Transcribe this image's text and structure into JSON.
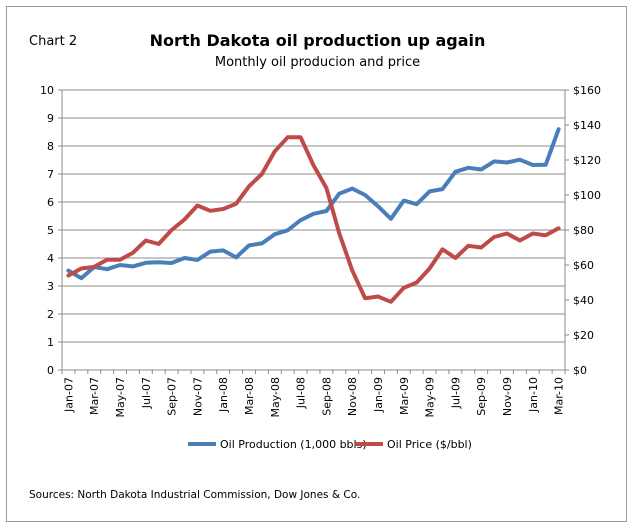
{
  "header": {
    "chart_label": "Chart 2",
    "title": "North Dakota oil production up again",
    "subtitle": "Monthly oil producion and price"
  },
  "source": "Sources: North Dakota Industrial Commission, Dow Jones & Co.",
  "colors": {
    "production": "#4a7ebb",
    "price": "#be4b48",
    "grid": "#8c8c8c"
  },
  "chart_data": {
    "type": "line",
    "x": [
      "Jan-07",
      "Feb-07",
      "Mar-07",
      "Apr-07",
      "May-07",
      "Jun-07",
      "Jul-07",
      "Aug-07",
      "Sep-07",
      "Oct-07",
      "Nov-07",
      "Dec-07",
      "Jan-08",
      "Feb-08",
      "Mar-08",
      "Apr-08",
      "May-08",
      "Jun-08",
      "Jul-08",
      "Aug-08",
      "Sep-08",
      "Oct-08",
      "Nov-08",
      "Dec-08",
      "Jan-09",
      "Feb-09",
      "Mar-09",
      "Apr-09",
      "May-09",
      "Jun-09",
      "Jul-09",
      "Aug-09",
      "Sep-09",
      "Oct-09",
      "Nov-09",
      "Dec-09",
      "Jan-10",
      "Feb-10",
      "Mar-10"
    ],
    "x_tick_labels": [
      "Jan-07",
      "Mar-07",
      "May-07",
      "Jul-07",
      "Sep-07",
      "Nov-07",
      "Jan-08",
      "Mar-08",
      "May-08",
      "Jul-08",
      "Sep-08",
      "Nov-08",
      "Jan-09",
      "Mar-09",
      "May-09",
      "Jul-09",
      "Sep-09",
      "Nov-09",
      "Jan-10",
      "Mar-10"
    ],
    "y_left": {
      "min": 0,
      "max": 10,
      "ticks": [
        "0",
        "1",
        "2",
        "3",
        "4",
        "5",
        "6",
        "7",
        "8",
        "9",
        "10"
      ]
    },
    "y_right": {
      "min": 0,
      "max": 160,
      "ticks": [
        "$0",
        "$20",
        "$40",
        "$60",
        "$80",
        "$100",
        "$120",
        "$140",
        "$160"
      ]
    },
    "grid": true,
    "legend_position": "bottom",
    "series": [
      {
        "name": "Oil Production (1,000 bbls)",
        "axis": "left",
        "values": [
          3.55,
          3.28,
          3.68,
          3.6,
          3.75,
          3.7,
          3.83,
          3.85,
          3.82,
          4.0,
          3.93,
          4.23,
          4.27,
          4.02,
          4.45,
          4.52,
          4.85,
          4.99,
          5.35,
          5.58,
          5.68,
          6.3,
          6.48,
          6.25,
          5.85,
          5.4,
          6.05,
          5.92,
          6.38,
          6.46,
          7.08,
          7.22,
          7.16,
          7.45,
          7.41,
          7.51,
          7.32,
          7.33,
          8.6
        ]
      },
      {
        "name": "Oil Price ($/bbl)",
        "axis": "right",
        "values": [
          54,
          58,
          59,
          63,
          63,
          67,
          74,
          72,
          80,
          86,
          94,
          91,
          92,
          95,
          105,
          112,
          125,
          133,
          133,
          117,
          104,
          78,
          57,
          41,
          42,
          39,
          47,
          50,
          58,
          69,
          64,
          71,
          70,
          76,
          78,
          74,
          78,
          77,
          81
        ]
      }
    ]
  }
}
